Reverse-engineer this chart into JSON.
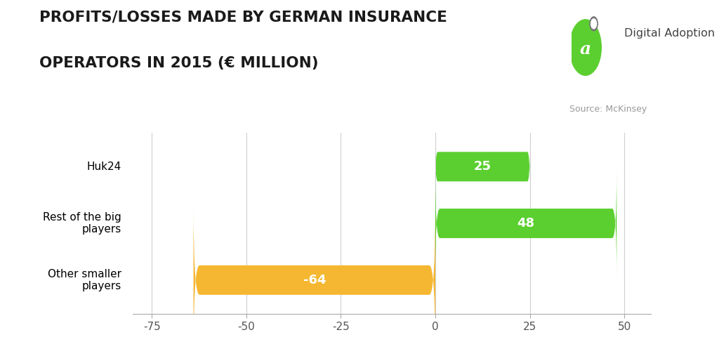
{
  "title_line1": "PROFITS/LOSSES MADE BY GERMAN INSURANCE",
  "title_line2": "OPERATORS IN 2015 (€ MILLION)",
  "source": "Source: McKinsey",
  "categories": [
    "Huk24",
    "Rest of the big\nplayers",
    "Other smaller\nplayers"
  ],
  "values": [
    25,
    48,
    -64
  ],
  "bar_colors": [
    "#5bcf2f",
    "#5bcf2f",
    "#f5b731"
  ],
  "label_color": "#ffffff",
  "xlim": [
    -80,
    57
  ],
  "xticks": [
    -75,
    -50,
    -25,
    0,
    25,
    50
  ],
  "background_color": "#ffffff",
  "grid_color": "#d0d0d0",
  "title_color": "#1a1a1a",
  "ylabel_fontsize": 11,
  "bar_label_fontsize": 13,
  "title_fontsize": 15.5,
  "source_fontsize": 9,
  "tick_fontsize": 11,
  "bar_height": 0.52,
  "logo_color": "#5bcf2f",
  "logo_text_color": "#555555"
}
